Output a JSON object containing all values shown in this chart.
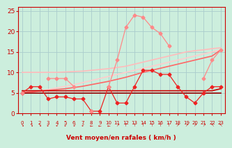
{
  "x": [
    0,
    1,
    2,
    3,
    4,
    5,
    6,
    7,
    8,
    9,
    10,
    11,
    12,
    13,
    14,
    15,
    16,
    17,
    18,
    19,
    20,
    21,
    22,
    23
  ],
  "series": [
    {
      "name": "dark_red_nearly_flat_bottom",
      "y": [
        5.0,
        5.0,
        5.0,
        5.0,
        5.0,
        5.0,
        5.0,
        5.0,
        5.0,
        5.0,
        5.0,
        5.0,
        5.0,
        5.0,
        5.0,
        5.0,
        5.0,
        5.0,
        5.0,
        5.0,
        5.0,
        5.0,
        5.0,
        5.0
      ],
      "color": "#990000",
      "lw": 1.2,
      "marker": null,
      "zorder": 5
    },
    {
      "name": "dark_red_flat2",
      "y": [
        5.5,
        5.5,
        5.5,
        5.5,
        5.5,
        5.5,
        5.5,
        5.5,
        5.5,
        5.5,
        5.5,
        5.5,
        5.5,
        5.5,
        5.5,
        5.5,
        5.5,
        5.5,
        5.5,
        5.5,
        5.5,
        5.5,
        5.5,
        6.0
      ],
      "color": "#cc0000",
      "lw": 1.2,
      "marker": null,
      "zorder": 5
    },
    {
      "name": "medium_red_rising_line",
      "y": [
        5.0,
        5.2,
        5.4,
        5.6,
        5.8,
        6.0,
        6.3,
        6.6,
        7.0,
        7.4,
        7.8,
        8.3,
        8.8,
        9.4,
        10.0,
        10.5,
        11.0,
        11.5,
        12.0,
        12.5,
        13.0,
        13.5,
        14.0,
        15.5
      ],
      "color": "#ff6666",
      "lw": 1.2,
      "marker": null,
      "zorder": 3
    },
    {
      "name": "light_pink_rising_line",
      "y": [
        10.0,
        10.0,
        10.0,
        10.0,
        10.0,
        10.1,
        10.2,
        10.3,
        10.5,
        10.7,
        10.9,
        11.2,
        11.5,
        12.0,
        12.5,
        13.0,
        13.5,
        14.0,
        14.5,
        15.0,
        15.3,
        15.5,
        15.8,
        16.0
      ],
      "color": "#ffbbbb",
      "lw": 1.2,
      "marker": null,
      "zorder": 2
    },
    {
      "name": "lightest_pink_rising_line",
      "y": [
        5.0,
        5.2,
        5.5,
        5.8,
        6.2,
        6.6,
        7.0,
        7.5,
        8.0,
        8.5,
        9.0,
        9.5,
        10.0,
        10.5,
        11.0,
        11.5,
        12.0,
        12.5,
        13.0,
        13.5,
        14.0,
        14.5,
        15.0,
        15.5
      ],
      "color": "#ffcccc",
      "lw": 1.2,
      "marker": null,
      "zorder": 2
    },
    {
      "name": "red_with_markers_volatile",
      "y": [
        5.0,
        6.5,
        6.5,
        3.5,
        4.0,
        4.0,
        3.5,
        3.5,
        0.5,
        0.5,
        6.5,
        2.5,
        2.5,
        6.5,
        10.5,
        10.5,
        9.5,
        9.5,
        6.5,
        4.0,
        2.5,
        5.0,
        6.5,
        6.5
      ],
      "color": "#ee2222",
      "lw": 0.9,
      "marker": "D",
      "ms": 2.5,
      "zorder": 6
    },
    {
      "name": "pink_with_markers_peaky",
      "y": [
        5.0,
        null,
        null,
        8.5,
        8.5,
        8.5,
        6.5,
        null,
        0.5,
        null,
        6.5,
        13.0,
        21.0,
        24.0,
        23.5,
        21.0,
        19.5,
        16.5,
        null,
        null,
        null,
        8.5,
        13.0,
        15.5
      ],
      "color": "#ff8888",
      "lw": 0.9,
      "marker": "D",
      "ms": 2.5,
      "zorder": 6
    }
  ],
  "xlim": [
    -0.5,
    23.5
  ],
  "ylim": [
    0,
    26
  ],
  "yticks": [
    0,
    5,
    10,
    15,
    20,
    25
  ],
  "xticks": [
    0,
    1,
    2,
    3,
    4,
    5,
    6,
    7,
    8,
    9,
    10,
    11,
    12,
    13,
    14,
    15,
    16,
    17,
    18,
    19,
    20,
    21,
    22,
    23
  ],
  "xlabel": "Vent moyen/en rafales ( km/h )",
  "xlabel_color": "#cc0000",
  "bg_color": "#cceedd",
  "grid_color": "#aacccc",
  "tick_color": "#cc0000",
  "xlabel_fontsize": 6.5,
  "ytick_fontsize": 6.5,
  "xtick_fontsize": 5.0,
  "wind_symbols": [
    "↘",
    "↘",
    "↘",
    "↙",
    "↙",
    "↙",
    "↙",
    "↙",
    "←",
    "←",
    "←",
    "↗",
    "↑",
    "↑",
    "↑",
    "↑",
    "↑",
    "↑",
    "↗",
    "↗",
    "↗",
    "↗",
    "↖",
    "↖"
  ]
}
